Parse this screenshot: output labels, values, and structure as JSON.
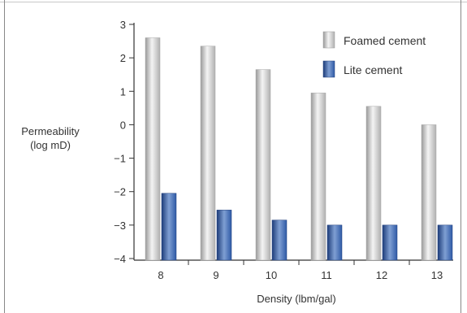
{
  "chart_data": {
    "type": "bar",
    "categories": [
      "8",
      "9",
      "10",
      "11",
      "12",
      "13"
    ],
    "series": [
      {
        "name": "Foamed cement",
        "values": [
          2.6,
          2.35,
          1.65,
          0.95,
          0.55,
          0.0
        ]
      },
      {
        "name": "Lite cement",
        "values": [
          -2.05,
          -2.55,
          -2.85,
          -3.0,
          -3.0,
          -3.0
        ]
      }
    ],
    "title": "",
    "xlabel": "Density (lbm/gal)",
    "ylabel_lines": [
      "Permeability",
      "(log mD)"
    ],
    "ylim": [
      -4,
      3
    ],
    "yticks": [
      "3",
      "2",
      "1",
      "0",
      "−1",
      "−2",
      "−3",
      "−4"
    ],
    "legend_position": "top-right",
    "colors": {
      "foamed_light": "#f4f4f4",
      "foamed_mid": "#c8c8c8",
      "foamed_dark": "#9a9a9a",
      "lite_light": "#7f9fd3",
      "lite_mid": "#2f5aa6",
      "lite_dark": "#1d3c7a",
      "axis": "#333333"
    }
  }
}
